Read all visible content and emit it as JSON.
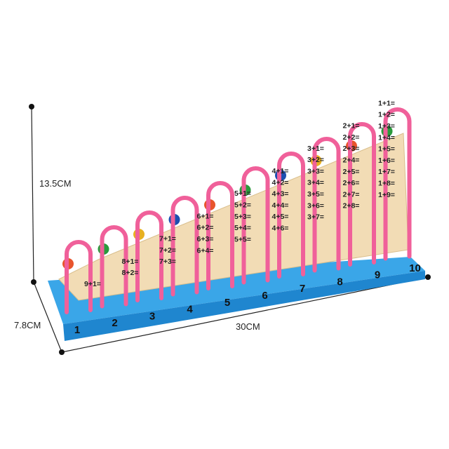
{
  "dimensions": {
    "height": "13.5CM",
    "depth": "7.8CM",
    "width": "30CM"
  },
  "base_numbers": [
    "1",
    "2",
    "3",
    "4",
    "5",
    "6",
    "7",
    "8",
    "9",
    "10"
  ],
  "equation_columns": [
    [
      "9+1="
    ],
    [
      "8+1=",
      "8+2="
    ],
    [
      "7+1=",
      "7+2=",
      "7+3="
    ],
    [
      "6+1=",
      "6+2=",
      "6+3=",
      "6+4="
    ],
    [
      "5+1=",
      "5+2=",
      "5+3=",
      "5+4=",
      "5+5="
    ],
    [
      "4+1=",
      "4+2=",
      "4+3=",
      "4+4=",
      "4+5=",
      "4+6="
    ],
    [
      "3+1=",
      "3+2=",
      "3+3=",
      "3+4=",
      "3+5=",
      "3+6=",
      "3+7="
    ],
    [
      "2+1=",
      "2+2=",
      "2+3=",
      "2+4=",
      "2+5=",
      "2+6=",
      "2+7=",
      "2+8="
    ],
    [
      "1+1=",
      "1+2=",
      "1+3=",
      "1+4=",
      "1+5=",
      "1+6=",
      "1+7=",
      "1+8=",
      "1+9="
    ]
  ]
}
